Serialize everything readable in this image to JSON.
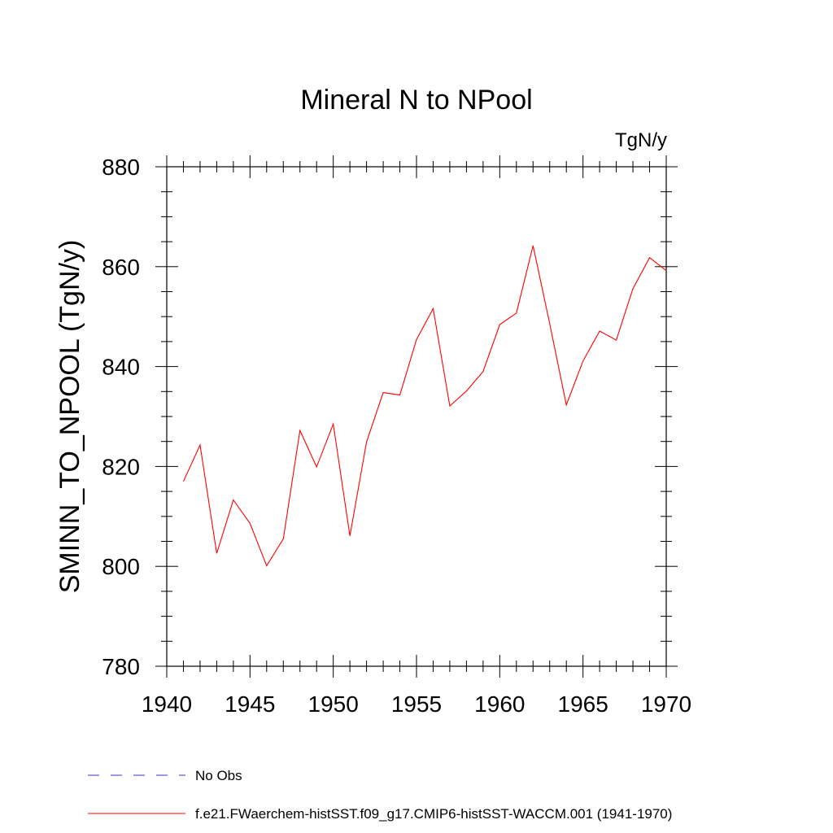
{
  "chart_data": {
    "type": "line",
    "title": "Mineral N to NPool",
    "units": "TgN/y",
    "xlabel": "",
    "ylabel": "SMINN_TO_NPOOL  (TgN/y)",
    "xlim": [
      1940,
      1970
    ],
    "ylim": [
      780,
      880
    ],
    "x_ticks": [
      1940,
      1945,
      1950,
      1955,
      1960,
      1965,
      1970
    ],
    "y_ticks": [
      780,
      800,
      820,
      840,
      860,
      880
    ],
    "grid": false,
    "legend_position": "bottom",
    "series": [
      {
        "name": "f.e21.FWaerchem-histSST.f09_g17.CMIP6-histSST-WACCM.001 (1941-1970)",
        "color": "#ff0000",
        "style": "solid",
        "x": [
          1941,
          1942,
          1943,
          1944,
          1945,
          1946,
          1947,
          1948,
          1949,
          1950,
          1951,
          1952,
          1953,
          1954,
          1955,
          1956,
          1957,
          1958,
          1959,
          1960,
          1961,
          1962,
          1963,
          1964,
          1965,
          1966,
          1967,
          1968,
          1969,
          1970
        ],
        "values": [
          817.0,
          824.3,
          802.6,
          813.3,
          808.6,
          800.1,
          805.5,
          827.2,
          819.9,
          828.5,
          806.1,
          824.9,
          834.8,
          834.3,
          845.4,
          851.6,
          832.1,
          835.1,
          839.0,
          848.4,
          850.7,
          864.2,
          848.6,
          832.3,
          841.1,
          847.1,
          845.3,
          855.6,
          861.8,
          859.2
        ]
      },
      {
        "name": "No Obs",
        "color": "#3a36c8",
        "style": "dashed",
        "x": [],
        "values": []
      }
    ]
  }
}
